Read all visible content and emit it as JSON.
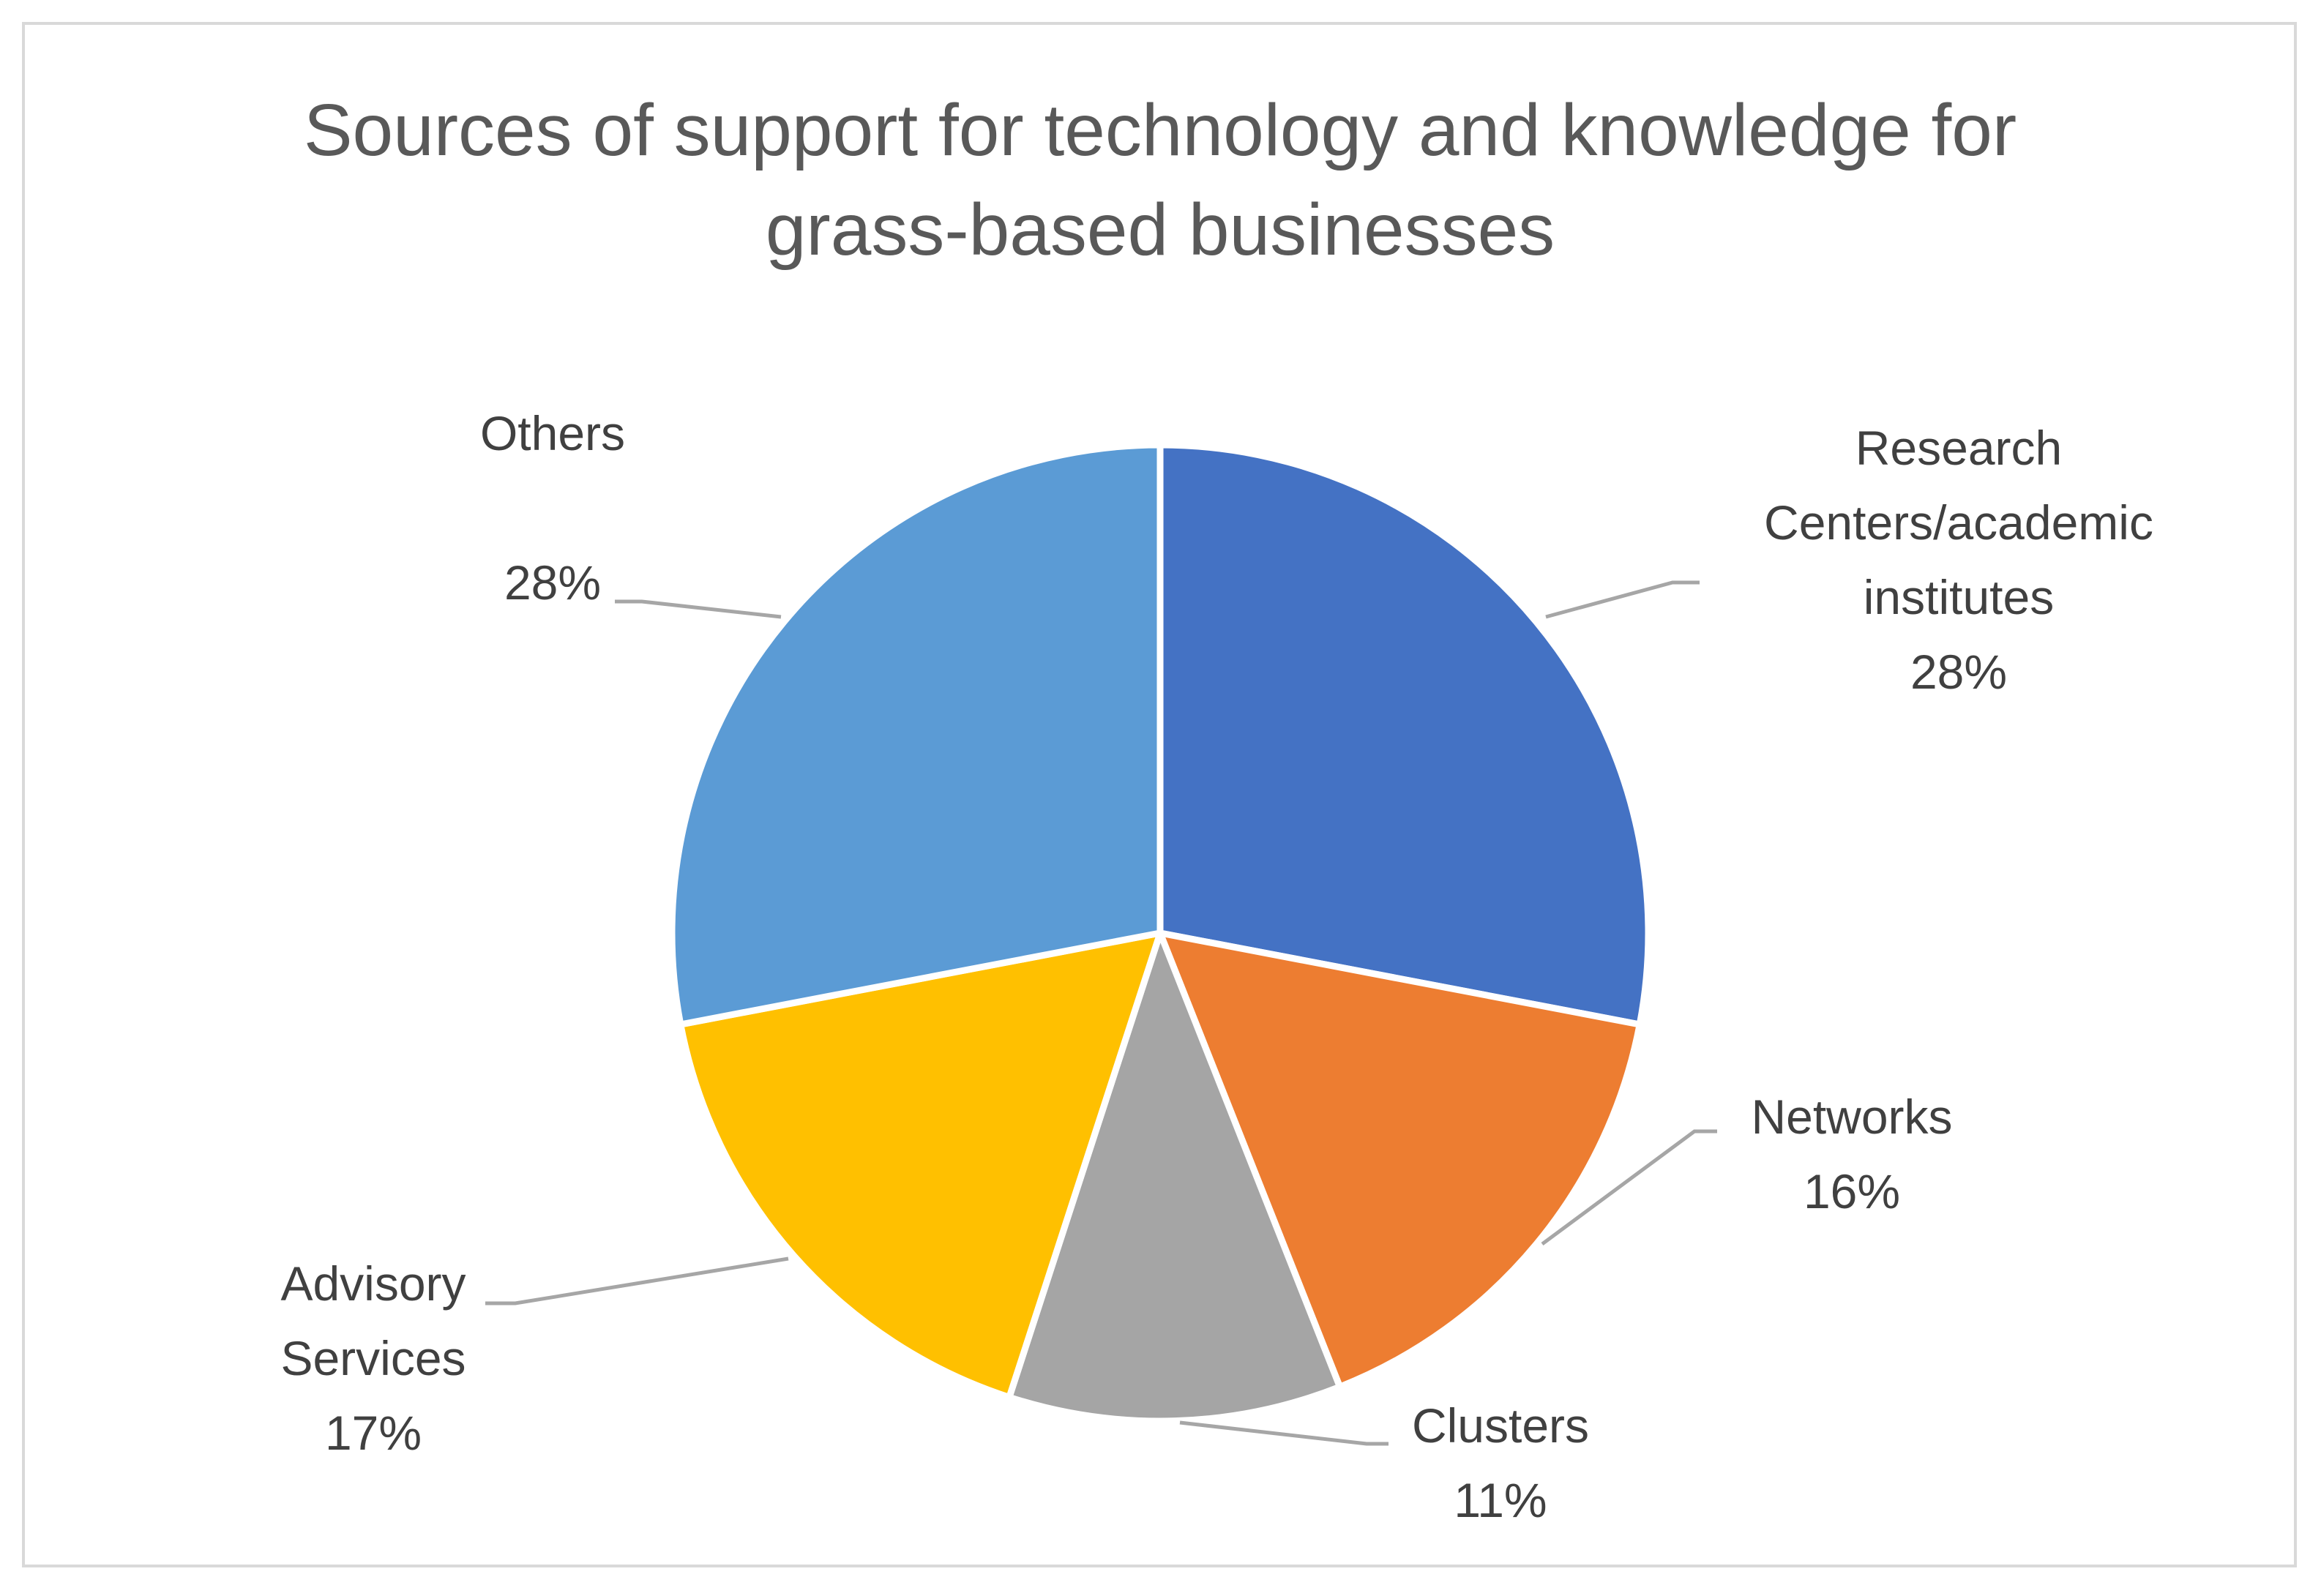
{
  "chart_data": {
    "type": "pie",
    "title": "Sources of support for technology and knowledge for grass-based businesses",
    "categories": [
      "Research Centers/academic institutes",
      "Networks",
      "Clusters",
      "Advisory Services",
      "Others"
    ],
    "values": [
      28,
      16,
      11,
      17,
      28
    ],
    "value_labels": [
      "28%",
      "16%",
      "11%",
      "17%",
      "28%"
    ],
    "colors": [
      "#4472C4",
      "#ED7D31",
      "#A5A5A5",
      "#FFC000",
      "#5B9BD5"
    ]
  }
}
